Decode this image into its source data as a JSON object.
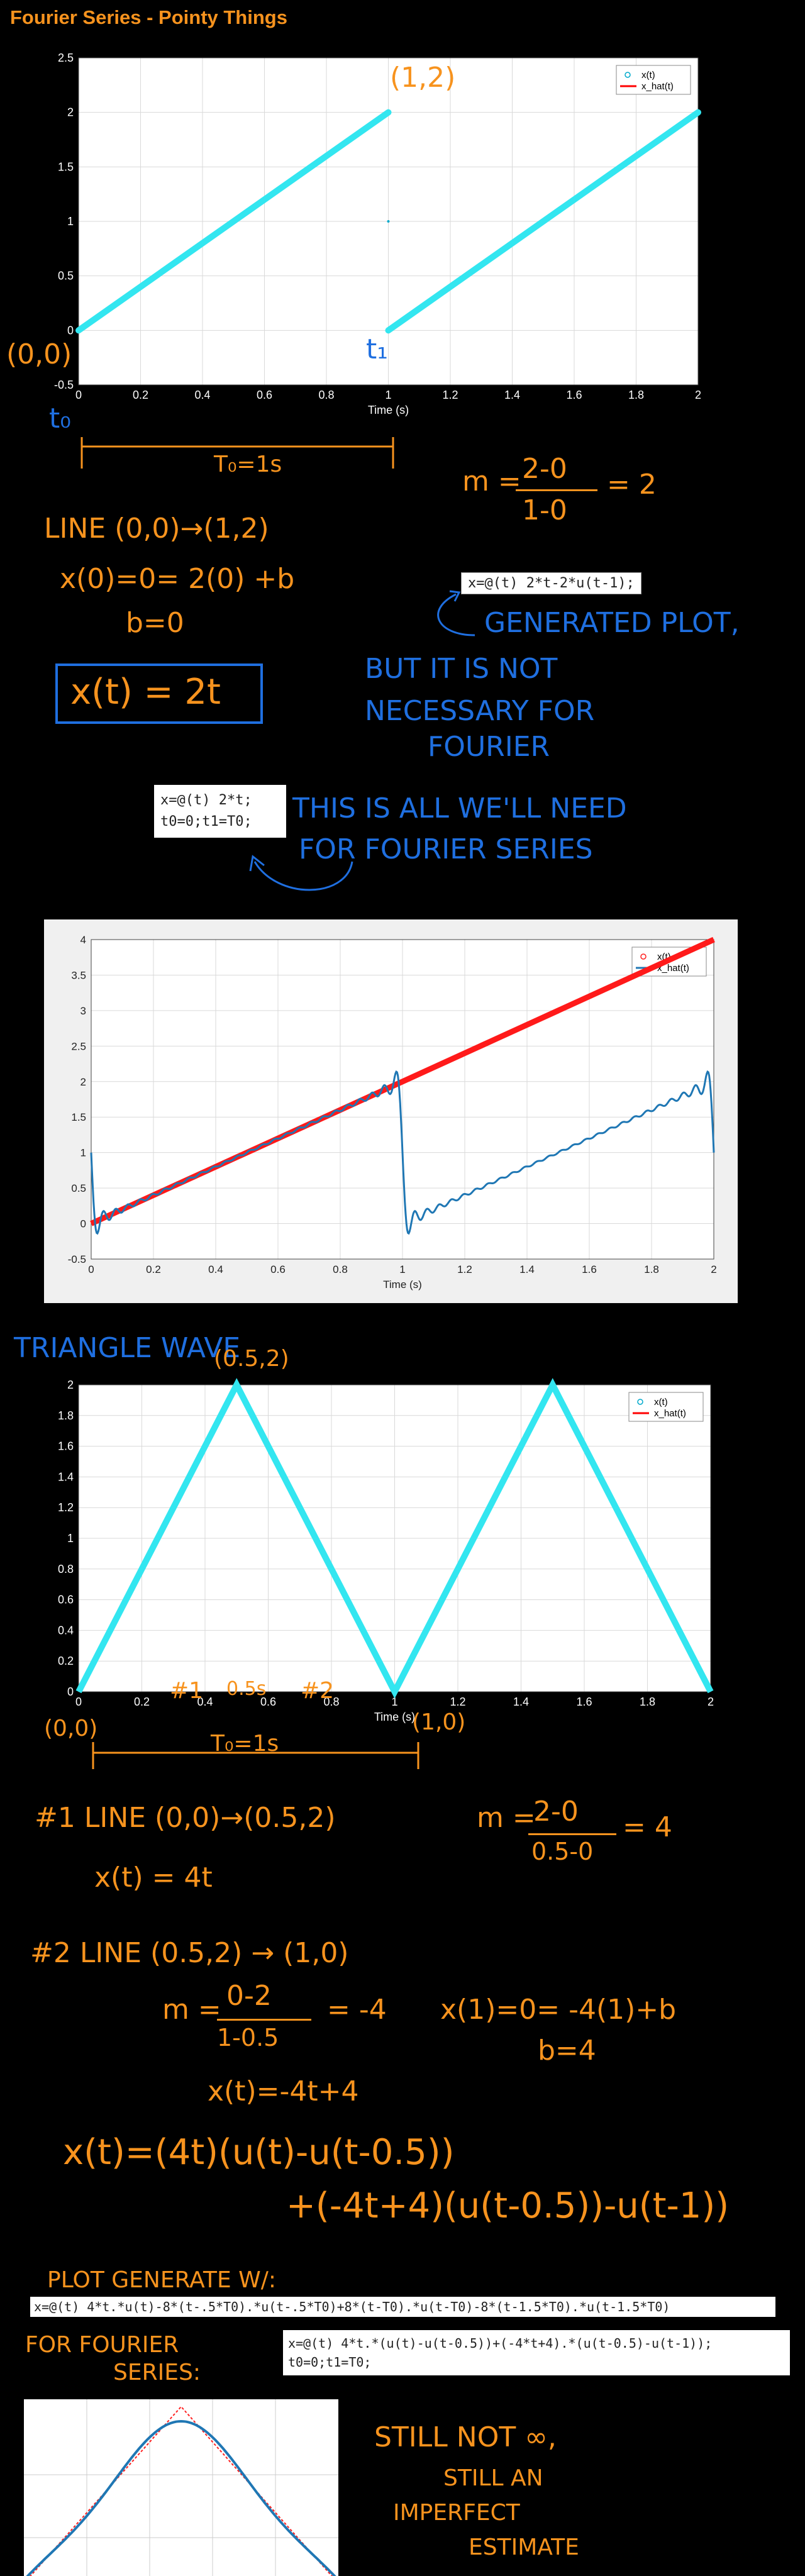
{
  "header": {
    "title": "Fourier Series - Pointy Things"
  },
  "chart_data": [
    {
      "type": "line",
      "title": "",
      "xlabel": "Time (s)",
      "ylabel": "",
      "xlim": [
        0,
        2
      ],
      "ylim": [
        -0.5,
        2.5
      ],
      "xticks": [
        "0",
        "0.2",
        "0.4",
        "0.6",
        "0.8",
        "1",
        "1.2",
        "1.4",
        "1.6",
        "1.8",
        "2"
      ],
      "yticks": [
        "-0.5",
        "0",
        "0.5",
        "1",
        "1.5",
        "2",
        "2.5"
      ],
      "grid": true,
      "legend_position": "top-right",
      "series": [
        {
          "name": "x(t)",
          "marker": "circle",
          "color": "#00aacc",
          "segments": [
            [
              [
                0,
                0
              ],
              [
                1,
                2
              ]
            ],
            [
              [
                1,
                0
              ],
              [
                2,
                2
              ]
            ]
          ]
        },
        {
          "name": "x_hat(t)",
          "color": "#ff0000",
          "segments": []
        }
      ],
      "line_color": "#33e6f0"
    },
    {
      "type": "line",
      "title": "",
      "xlabel": "Time (s)",
      "ylabel": "",
      "xlim": [
        0,
        2
      ],
      "ylim": [
        -0.5,
        4
      ],
      "xticks": [
        "0",
        "0.2",
        "0.4",
        "0.6",
        "0.8",
        "1",
        "1.2",
        "1.4",
        "1.6",
        "1.8",
        "2"
      ],
      "yticks": [
        "-0.5",
        "0",
        "0.5",
        "1",
        "1.5",
        "2",
        "2.5",
        "3",
        "3.5",
        "4"
      ],
      "grid": true,
      "legend_position": "top-right",
      "series": [
        {
          "name": "x(t)",
          "marker": "circle",
          "color": "#ff2020",
          "points_line": [
            [
              0,
              0
            ],
            [
              2,
              4
            ]
          ]
        },
        {
          "name": "x_hat(t)",
          "color": "#1f77b4",
          "shape": "sawtooth-approx",
          "period": 1,
          "slope": 2
        }
      ]
    },
    {
      "type": "line",
      "title": "",
      "xlabel": "Time (s)",
      "ylabel": "",
      "xlim": [
        0,
        2
      ],
      "ylim": [
        0,
        2
      ],
      "xticks": [
        "0",
        "0.2",
        "0.4",
        "0.6",
        "0.8",
        "1",
        "1.2",
        "1.4",
        "1.6",
        "1.8",
        "2"
      ],
      "yticks": [
        "0",
        "0.2",
        "0.4",
        "0.6",
        "0.8",
        "1",
        "1.2",
        "1.4",
        "1.6",
        "1.8",
        "2"
      ],
      "grid": true,
      "legend_position": "top-right",
      "series": [
        {
          "name": "x(t)",
          "marker": "circle",
          "color": "#00aacc",
          "points": [
            [
              0,
              0
            ],
            [
              0.5,
              2
            ],
            [
              1,
              0
            ],
            [
              1.5,
              2
            ],
            [
              2,
              0
            ]
          ]
        },
        {
          "name": "x_hat(t)",
          "color": "#ff0000"
        }
      ],
      "line_color": "#33e6f0"
    }
  ],
  "annotations": {
    "a_12": "(1,2)",
    "a_00": "(0,0)",
    "a_t1": "t₁",
    "a_t0": "t₀",
    "a_T0": "T₀=1s",
    "slope": "m =",
    "slope_num": "2-0",
    "slope_den": "1-0",
    "slope_res": "= 2",
    "line_label": "LINE (0,0)→(1,2)",
    "eq1": "x(0)=0= 2(0) +b",
    "eq2": "b=0",
    "eq3": "x(t) = 2t",
    "gen_plot": "GENERATED PLOT,",
    "not_nec_1": "BUT IT IS NOT",
    "not_nec_2": "NECESSARY FOR",
    "not_nec_3": "FOURIER",
    "this_1": "THIS   IS ALL WE'LL NEED",
    "this_2": "FOR FOURIER SERIES",
    "tri": "TRIANGLE WAVE",
    "tri_peak": "(0.5,2)",
    "tri_00": "(0,0)",
    "tri_10": "(1,0)",
    "tri_n1": "#1",
    "tri_n2": "#2",
    "tri_05": "0.5s",
    "tri_T0": "T₀=1s",
    "l1a": "#1  LINE (0,0)→(0.5,2)",
    "l1m": "m =",
    "l1mn": "2-0",
    "l1md": "0.5-0",
    "l1mr": "= 4",
    "l1x": "x(t) = 4t",
    "l2a": "#2 LINE   (0.5,2) → (1,0)",
    "l2m": "m =",
    "l2mn": "0-2",
    "l2md": "1-0.5",
    "l2mr": "= -4",
    "l2b1": "x(1)=0= -4(1)+b",
    "l2b2": "b=4",
    "l2x": "x(t)=-4t+4",
    "full1": "x(t)=(4t)(u(t)-u(t-0.5))",
    "full2": "+(-4t+4)(u(t-0.5))-u(t-1))",
    "plotgen": "PLOT GENERATE W/:",
    "for_fs_1": "FOR FOURIER",
    "for_fs_2": "SERIES:",
    "still_1": "STILL NOT ∞,",
    "still_2": "STILL AN",
    "still_3": "IMPERFECT",
    "still_4": "ESTIMATE"
  },
  "code": {
    "c1": "x=@(t) 2*t-2*u(t-1);",
    "c2a": "x=@(t) 2*t;",
    "c2b": "t0=0;t1=T0;",
    "c3": "x=@(t) 4*t.*u(t)-8*(t-.5*T0).*u(t-.5*T0)+8*(t-T0).*u(t-T0)-8*(t-1.5*T0).*u(t-1.5*T0)",
    "c4a": "x=@(t) 4*t.*(u(t)-u(t-0.5))+(-4*t+4).*(u(t-0.5)-u(t-1));",
    "c4b": "t0=0;t1=T0;"
  }
}
